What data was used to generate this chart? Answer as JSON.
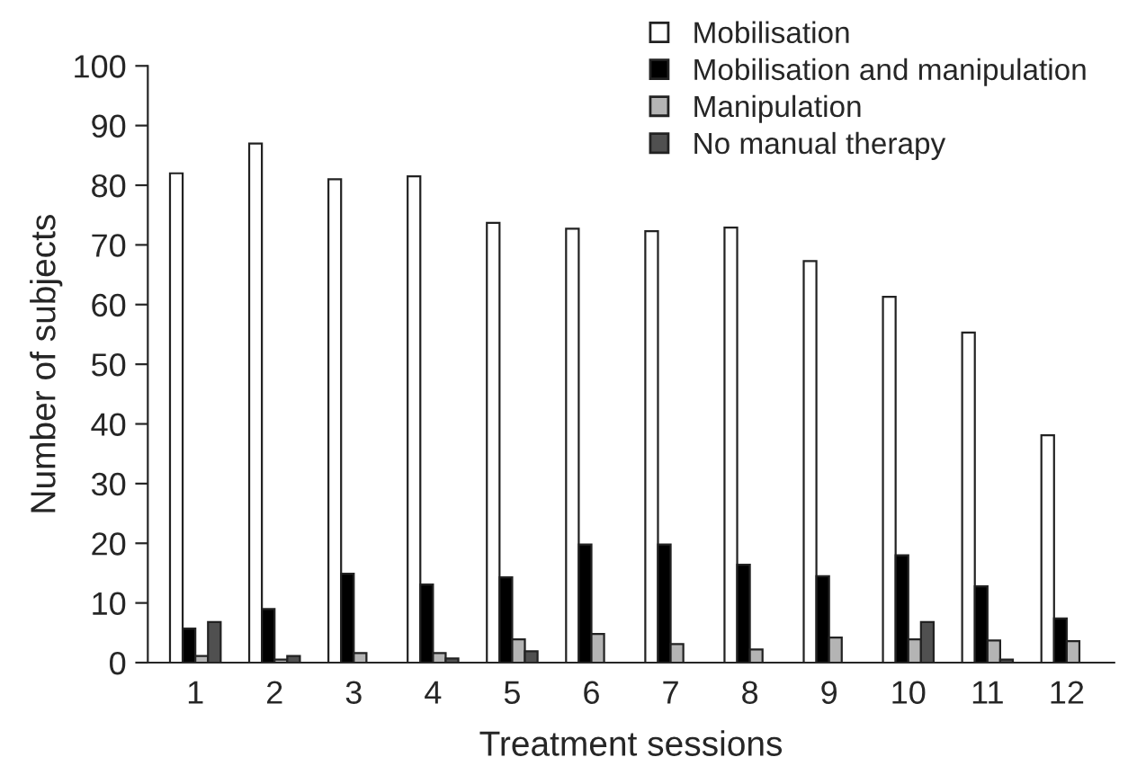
{
  "chart_data": {
    "type": "bar",
    "xlabel": "Treatment sessions",
    "ylabel": "Number of subjects",
    "categories": [
      "1",
      "2",
      "3",
      "4",
      "5",
      "6",
      "7",
      "8",
      "9",
      "10",
      "11",
      "12"
    ],
    "series": [
      {
        "name": "Mobilisation",
        "color": "#ffffff",
        "values": [
          82,
          87,
          81,
          81.5,
          73.7,
          72.7,
          72.3,
          72.9,
          67.3,
          61.3,
          55.3,
          38.1
        ]
      },
      {
        "name": "Mobilisation and manipulation",
        "color": "#000000",
        "values": [
          5.7,
          9,
          14.9,
          13.1,
          14.3,
          19.8,
          19.8,
          16.4,
          14.5,
          18,
          12.8,
          7.4
        ]
      },
      {
        "name": "Manipulation",
        "color": "#b4b4b4",
        "values": [
          1.1,
          0.5,
          1.6,
          1.6,
          3.9,
          4.8,
          3.1,
          2.2,
          4.2,
          3.9,
          3.7,
          3.6
        ]
      },
      {
        "name": "No manual therapy",
        "color": "#505050",
        "values": [
          6.8,
          1.1,
          null,
          0.7,
          1.9,
          null,
          null,
          null,
          null,
          6.8,
          0.5,
          null
        ]
      }
    ],
    "ylim": [
      0,
      100
    ],
    "yticks": [
      0,
      10,
      20,
      30,
      40,
      50,
      60,
      70,
      80,
      90,
      100
    ],
    "grid": false,
    "legend": "top right"
  }
}
